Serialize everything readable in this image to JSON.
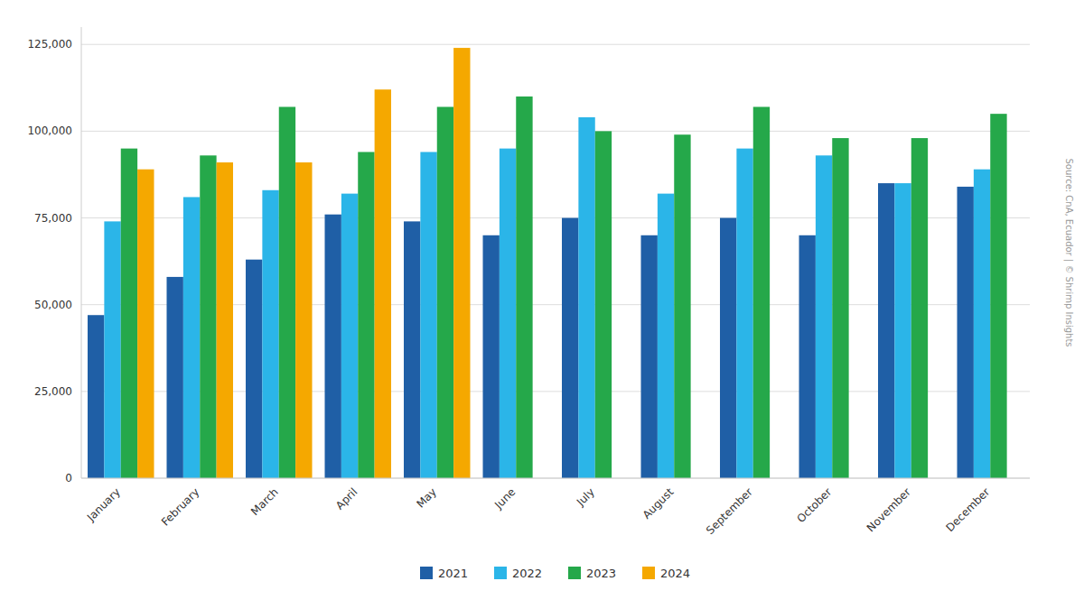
{
  "chart_data": {
    "type": "bar",
    "categories": [
      "January",
      "February",
      "March",
      "April",
      "May",
      "June",
      "July",
      "August",
      "September",
      "October",
      "November",
      "December"
    ],
    "series": [
      {
        "name": "2021",
        "color": "#1F5FA6",
        "values": [
          47000,
          58000,
          63000,
          76000,
          74000,
          70000,
          75000,
          70000,
          75000,
          70000,
          85000,
          84000
        ]
      },
      {
        "name": "2022",
        "color": "#2BB5E8",
        "values": [
          74000,
          81000,
          83000,
          82000,
          94000,
          95000,
          104000,
          82000,
          95000,
          93000,
          85000,
          89000
        ]
      },
      {
        "name": "2023",
        "color": "#25A84A",
        "values": [
          95000,
          93000,
          107000,
          94000,
          107000,
          110000,
          100000,
          99000,
          107000,
          98000,
          98000,
          105000
        ]
      },
      {
        "name": "2024",
        "color": "#F5A800",
        "values": [
          89000,
          91000,
          91000,
          112000,
          124000,
          null,
          null,
          null,
          null,
          null,
          null,
          null
        ]
      }
    ],
    "ylim": [
      0,
      130000
    ],
    "yticks": [
      0,
      {
        "value": 25000,
        "label": "25,000"
      },
      {
        "value": 50000,
        "label": "50,000"
      },
      {
        "value": 75000,
        "label": "75,000"
      },
      {
        "value": 100000,
        "label": "100,000"
      },
      {
        "value": 125000,
        "label": "125,000"
      }
    ],
    "grid": true,
    "legend": "bottom",
    "annotations": [
      "Source: CnA, Ecuador  |  © Shrimp Insights"
    ]
  }
}
